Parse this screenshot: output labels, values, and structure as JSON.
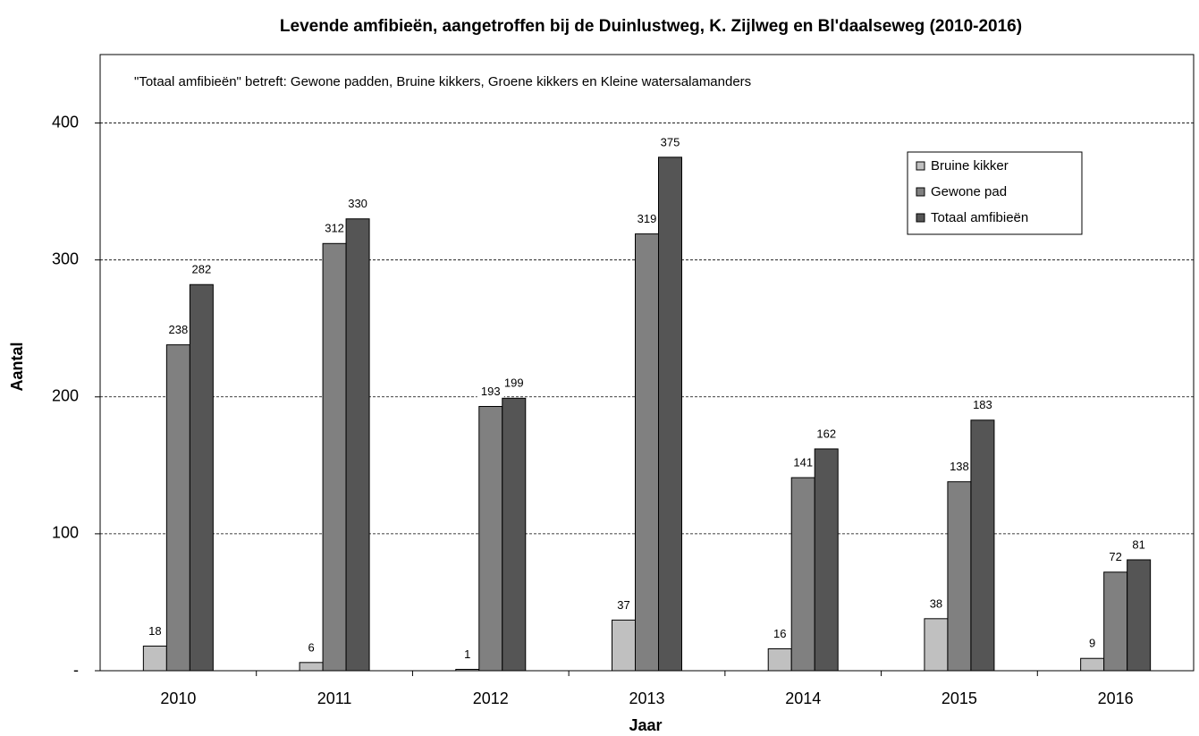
{
  "chart_data": {
    "type": "bar",
    "title": "Levende amfibieën, aangetroffen bij de Duinlustweg, K. Zijlweg en Bl'daalseweg (2010-2016)",
    "annotation": "\"Totaal amfibieën\" betreft: Gewone padden, Bruine kikkers, Groene kikkers en Kleine watersalamanders",
    "x_label": "Jaar",
    "y_label": "Aantal",
    "categories": [
      "2010",
      "2011",
      "2012",
      "2013",
      "2014",
      "2015",
      "2016"
    ],
    "series": [
      {
        "name": "Bruine kikker",
        "color": "#c0c0c0",
        "values": [
          18,
          6,
          1,
          37,
          16,
          38,
          9
        ]
      },
      {
        "name": "Gewone pad",
        "color": "#808080",
        "values": [
          238,
          312,
          193,
          319,
          141,
          138,
          72
        ]
      },
      {
        "name": "Totaal amfibieën",
        "color": "#555555",
        "values": [
          282,
          330,
          199,
          375,
          162,
          183,
          81
        ]
      }
    ],
    "ylim": [
      0,
      450
    ],
    "yticks": [
      {
        "value": 0,
        "label": "-"
      },
      100,
      200,
      300,
      400
    ],
    "grid": true,
    "legend": "upper right"
  }
}
